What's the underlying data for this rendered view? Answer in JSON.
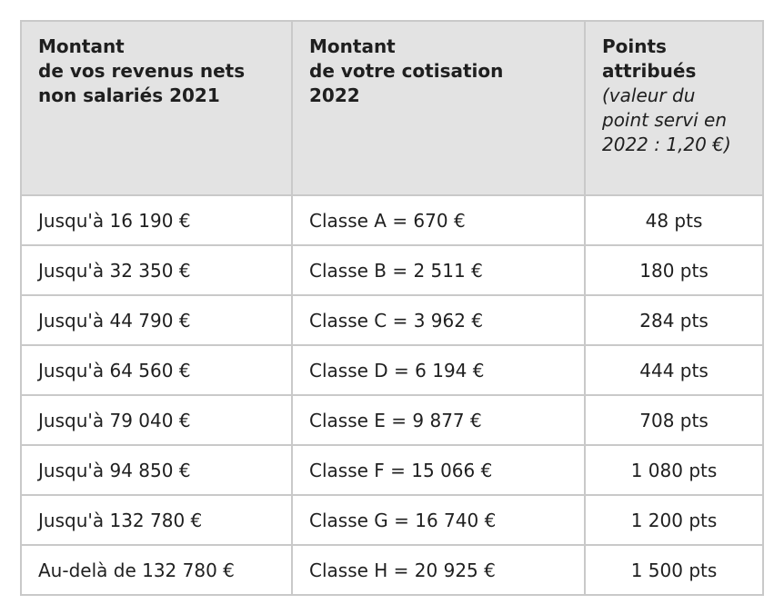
{
  "table": {
    "headers": {
      "income": [
        "Montant",
        "de vos revenus nets",
        "non salariés 2021"
      ],
      "contribution": [
        "Montant",
        "de votre cotisation",
        "2022"
      ],
      "points": [
        "Points",
        "attribués"
      ],
      "points_note": [
        "(valeur du",
        "point servi en",
        "2022 : 1,20 €)"
      ]
    },
    "rows": [
      {
        "income": "Jusqu'à 16 190 €",
        "contribution": "Classe A = 670 €",
        "points": "48 pts"
      },
      {
        "income": "Jusqu'à 32 350 €",
        "contribution": "Classe B = 2 511 €",
        "points": "180 pts"
      },
      {
        "income": "Jusqu'à 44 790 €",
        "contribution": "Classe C = 3 962 €",
        "points": "284 pts"
      },
      {
        "income": "Jusqu'à 64 560 €",
        "contribution": "Classe D = 6 194 €",
        "points": "444 pts"
      },
      {
        "income": "Jusqu'à 79 040 €",
        "contribution": "Classe E = 9 877 €",
        "points": "708 pts"
      },
      {
        "income": "Jusqu'à 94 850 €",
        "contribution": "Classe F = 15 066 €",
        "points": "1 080 pts"
      },
      {
        "income": "Jusqu'à 132 780 €",
        "contribution": "Classe G = 16 740 €",
        "points": "1 200 pts"
      },
      {
        "income": "Au-delà de 132 780 €",
        "contribution": "Classe H = 20 925 €",
        "points": "1 500 pts"
      }
    ]
  }
}
